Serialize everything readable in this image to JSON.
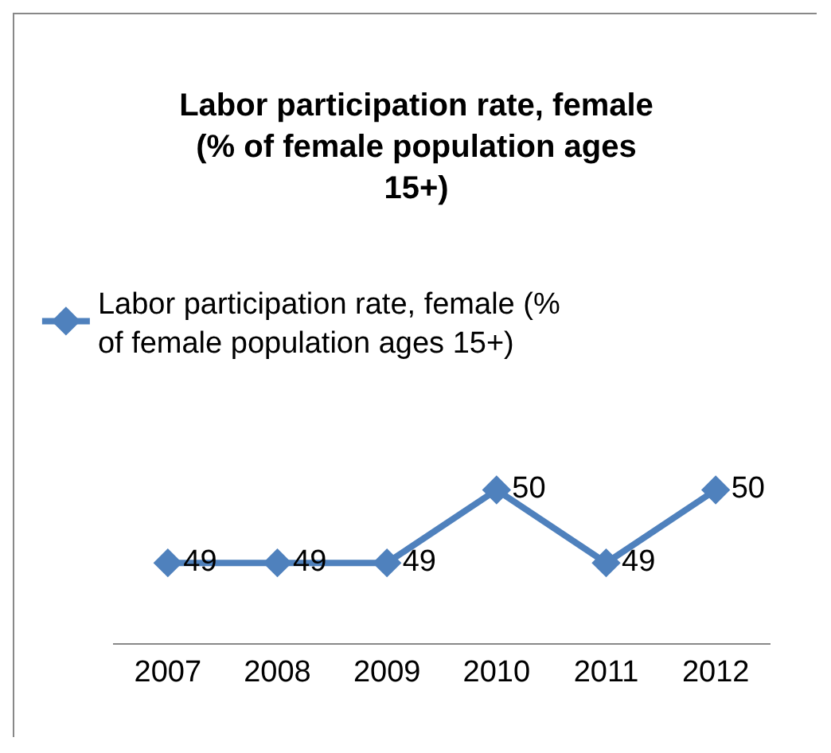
{
  "chart_data": {
    "type": "line",
    "title": "Labor participation rate, female (% of female population ages 15+)",
    "categories": [
      "2007",
      "2008",
      "2009",
      "2010",
      "2011",
      "2012"
    ],
    "series": [
      {
        "name": "Labor participation rate, female (% of female population ages 15+)",
        "color": "#4f81bd",
        "values": [
          49,
          49,
          49,
          50,
          49,
          50
        ]
      }
    ],
    "data_labels": true,
    "legend": "top",
    "marker": "diamond",
    "grid": false
  }
}
